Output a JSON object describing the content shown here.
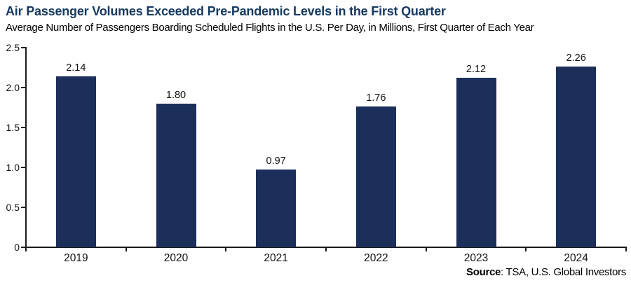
{
  "header": {
    "title": "Air Passenger Volumes Exceeded Pre-Pandemic Levels in the First Quarter",
    "subtitle": "Average Number of Passengers Boarding Scheduled Flights in the U.S. Per Day, in Millions, First Quarter of Each Year"
  },
  "source": {
    "label": "Source",
    "rest": ": TSA, U.S. Global Investors"
  },
  "colors": {
    "bar": "#1c2f5a",
    "title": "#16395f",
    "axis": "#1a1a1a",
    "text": "#111111",
    "background": "#ffffff"
  },
  "chart_data": {
    "type": "bar",
    "title": "Air Passenger Volumes Exceeded Pre-Pandemic Levels in the First Quarter",
    "subtitle": "Average Number of Passengers Boarding Scheduled Flights in the U.S. Per Day, in Millions, First Quarter of Each Year",
    "categories": [
      "2019",
      "2020",
      "2021",
      "2022",
      "2023",
      "2024"
    ],
    "values": [
      2.14,
      1.8,
      0.97,
      1.76,
      2.12,
      2.26
    ],
    "value_labels": [
      "2.14",
      "1.80",
      "0.97",
      "1.76",
      "2.12",
      "2.26"
    ],
    "xlabel": "",
    "ylabel": "",
    "ylim": [
      0,
      2.5
    ],
    "yticks": [
      2.5,
      2.0,
      1.5,
      1.0,
      0.5,
      0
    ],
    "ytick_labels": [
      "2.5",
      "2.0",
      "1.5",
      "1.0",
      "0.5",
      "0"
    ],
    "grid": false,
    "legend": false,
    "bar_color": "#1c2f5a",
    "data_labels": true,
    "source": "Source: TSA, U.S. Global Investors"
  }
}
